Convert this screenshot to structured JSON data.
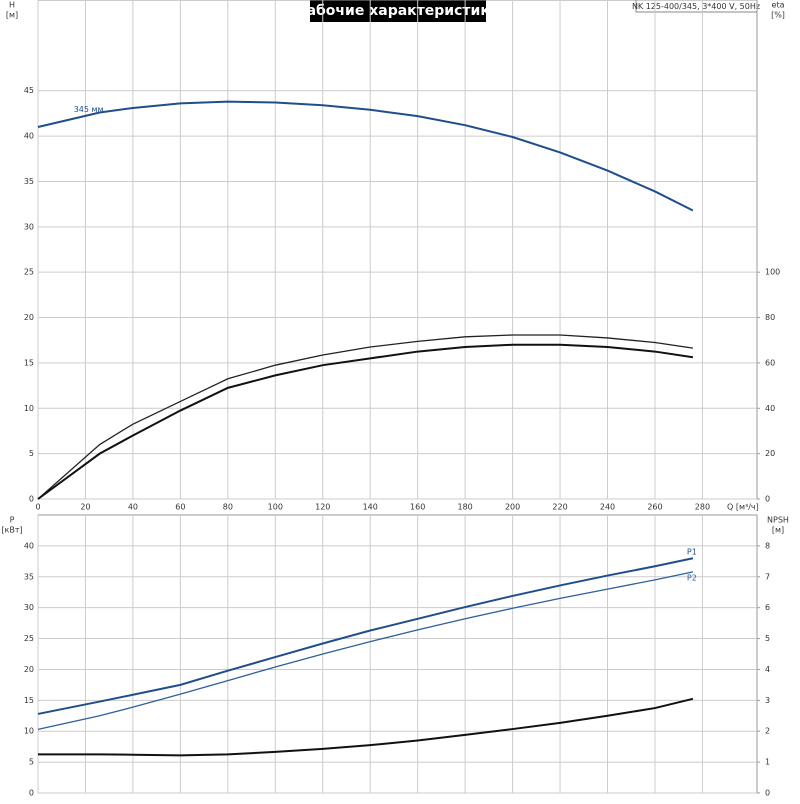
{
  "chart_data": [
    {
      "type": "line",
      "title": "Рабочие характеристики",
      "subtitle": "NK 125-400/345, 3*400 V, 50Hz",
      "ylabel": [
        "H",
        "[м]"
      ],
      "y2label": [
        "eta",
        "[%]"
      ],
      "xlabel": "Q [м³/ч]",
      "x": [
        0,
        26,
        40,
        60,
        80,
        100,
        120,
        140,
        160,
        180,
        200,
        220,
        240,
        260,
        276
      ],
      "xlim": [
        0,
        303
      ],
      "xticks": [
        0,
        20,
        40,
        60,
        80,
        100,
        120,
        140,
        160,
        180,
        200,
        220,
        240,
        260,
        280
      ],
      "ylim": [
        0,
        55
      ],
      "yticks": [
        0,
        5,
        10,
        15,
        20,
        25,
        30,
        35,
        40,
        45
      ],
      "y2lim": [
        0,
        220
      ],
      "y2ticks": [
        0,
        20,
        40,
        60,
        80,
        100
      ],
      "grid": true,
      "series": [
        {
          "name": "345 мм",
          "color": "#1f4e8c",
          "width": 2,
          "values": [
            41,
            42.6,
            43.1,
            43.6,
            43.8,
            43.7,
            43.4,
            42.9,
            42.2,
            41.2,
            39.9,
            38.2,
            36.2,
            33.9,
            31.8
          ]
        },
        {
          "color": "#222222",
          "width": 1.3,
          "axis": "y2",
          "values": [
            0,
            24,
            33,
            43,
            53,
            59,
            63.5,
            67,
            69.5,
            71.5,
            72.3,
            72.3,
            71,
            69,
            66.5
          ]
        },
        {
          "color": "#111111",
          "width": 2,
          "axis": "y2",
          "values": [
            0,
            20,
            28,
            39,
            49,
            54.5,
            59,
            62,
            65,
            67,
            68,
            68,
            67,
            65,
            62.5
          ]
        }
      ]
    },
    {
      "type": "line",
      "ylabel": [
        "P",
        "[кВт]"
      ],
      "y2label": [
        "NPSH",
        "[м]"
      ],
      "x": [
        0,
        26,
        40,
        60,
        80,
        100,
        120,
        140,
        160,
        180,
        200,
        220,
        240,
        260,
        276
      ],
      "xlim": [
        0,
        303
      ],
      "xticks": [
        0,
        20,
        40,
        60,
        80,
        100,
        120,
        140,
        160,
        180,
        200,
        220,
        240,
        260,
        280
      ],
      "ylim": [
        0,
        45
      ],
      "yticks": [
        0,
        5,
        10,
        15,
        20,
        25,
        30,
        35,
        40
      ],
      "y2lim": [
        0,
        9
      ],
      "y2ticks": [
        0,
        1,
        2,
        3,
        4,
        5,
        6,
        7,
        8
      ],
      "grid": true,
      "series": [
        {
          "name": "P1",
          "color": "#1f4e8c",
          "width": 2,
          "values": [
            12.8,
            14.8,
            15.9,
            17.5,
            19.8,
            22,
            24.2,
            26.3,
            28.2,
            30.1,
            31.9,
            33.6,
            35.2,
            36.7,
            38
          ]
        },
        {
          "name": "P2",
          "color": "#2f5f9c",
          "width": 1.3,
          "values": [
            10.3,
            12.5,
            13.9,
            16,
            18.2,
            20.4,
            22.5,
            24.5,
            26.4,
            28.2,
            29.9,
            31.5,
            33,
            34.5,
            35.8
          ]
        },
        {
          "color": "#111111",
          "width": 2,
          "axis": "y2",
          "values": [
            1.25,
            1.25,
            1.24,
            1.22,
            1.25,
            1.33,
            1.43,
            1.55,
            1.7,
            1.88,
            2.07,
            2.27,
            2.5,
            2.75,
            3.05
          ]
        }
      ]
    }
  ]
}
